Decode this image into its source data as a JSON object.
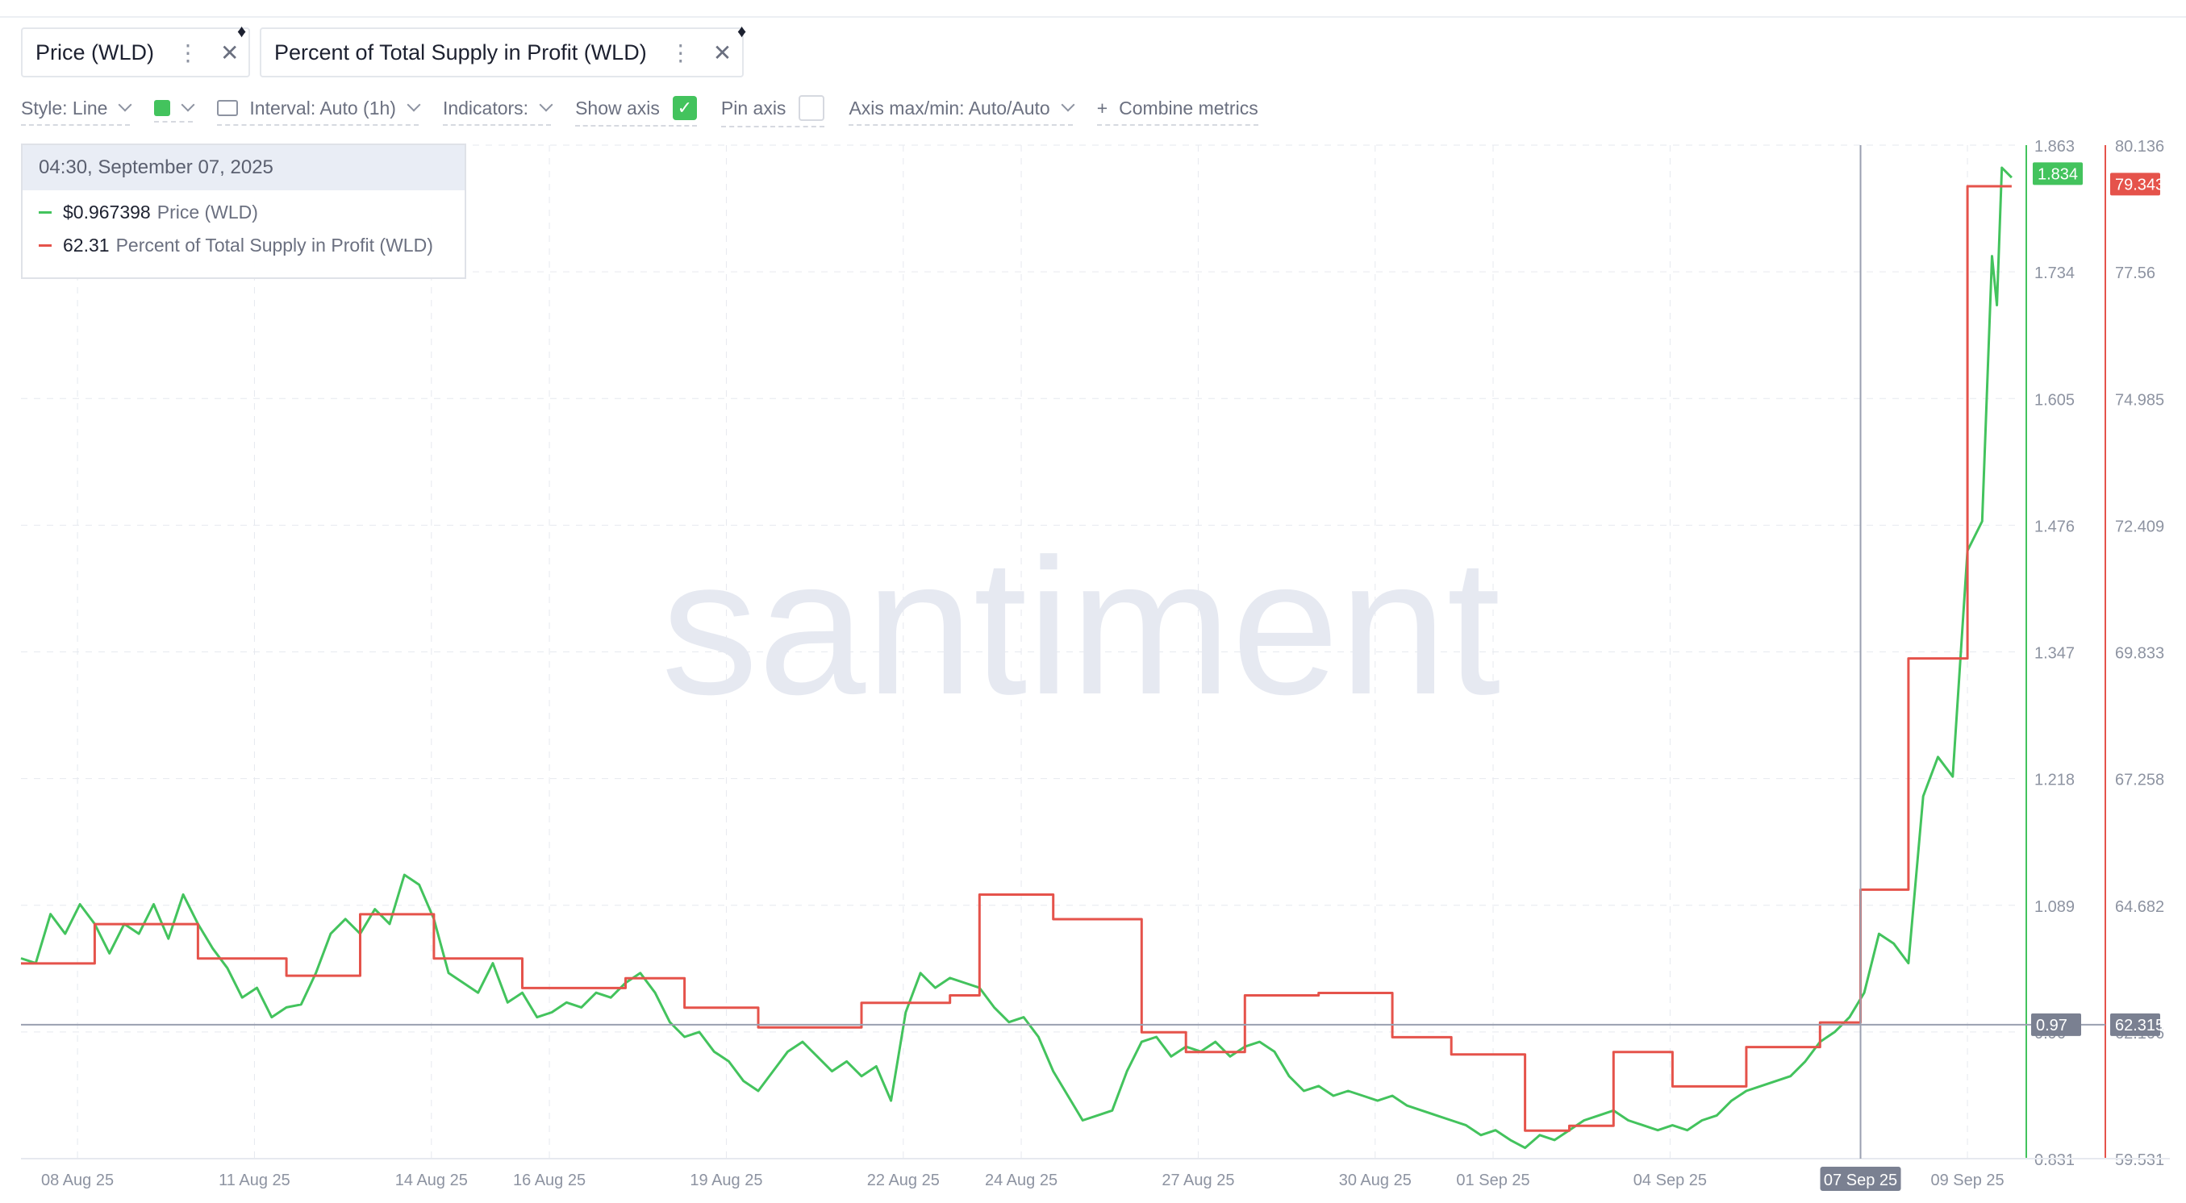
{
  "metric_tabs": [
    {
      "label": "Price (WLD)",
      "color": "#43c35d"
    },
    {
      "label": "Percent of Total Supply in Profit (WLD)",
      "color": "#e5534b"
    }
  ],
  "toolbar": {
    "style_label": "Style: Line",
    "interval_label": "Interval: Auto (1h)",
    "indicators_label": "Indicators:",
    "show_axis_label": "Show axis",
    "show_axis_checked": true,
    "pin_axis_label": "Pin axis",
    "pin_axis_checked": false,
    "axis_minmax_label": "Axis max/min: Auto/Auto",
    "combine_label": "Combine metrics"
  },
  "tooltip": {
    "date": "04:30, September 07, 2025",
    "rows": [
      {
        "value": "$0.967398",
        "label": "Price (WLD)",
        "color": "#43c35d"
      },
      {
        "value": "62.31",
        "label": "Percent of Total Supply in Profit (WLD)",
        "color": "#e5534b"
      }
    ]
  },
  "watermark": "santiment",
  "chart_data": {
    "type": "line",
    "x_ticks": [
      "08 Aug 25",
      "11 Aug 25",
      "14 Aug 25",
      "16 Aug 25",
      "19 Aug 25",
      "22 Aug 25",
      "24 Aug 25",
      "27 Aug 25",
      "30 Aug 25",
      "01 Sep 25",
      "04 Sep 25",
      "07 Sep 25",
      "09 Sep 25"
    ],
    "highlighted_x_tick": "07 Sep 25",
    "x_range": [
      "2025-08-07",
      "2025-09-09"
    ],
    "grid": true,
    "y_left": {
      "ticks": [
        "1.863",
        "1.734",
        "1.605",
        "1.476",
        "1.347",
        "1.218",
        "1.089",
        "0.96",
        "0.831"
      ],
      "range": [
        0.831,
        1.863
      ],
      "series": "Price (WLD)",
      "current_label": "1.834",
      "crosshair_label": "0.97"
    },
    "y_right": {
      "ticks": [
        "80.136",
        "77.56",
        "74.985",
        "72.409",
        "69.833",
        "67.258",
        "64.682",
        "62.106",
        "59.531"
      ],
      "range": [
        59.531,
        80.136
      ],
      "series": "Percent of Total Supply in Profit (WLD)",
      "current_label": "79.343",
      "crosshair_label": "62.315"
    },
    "series": [
      {
        "name": "Price (WLD)",
        "axis": "left",
        "color": "#43c35d",
        "points": [
          [
            "2025-08-07T00:00",
            1.035
          ],
          [
            "2025-08-07T06:00",
            1.03
          ],
          [
            "2025-08-07T12:00",
            1.08
          ],
          [
            "2025-08-07T18:00",
            1.06
          ],
          [
            "2025-08-08T00:00",
            1.09
          ],
          [
            "2025-08-08T06:00",
            1.07
          ],
          [
            "2025-08-08T12:00",
            1.04
          ],
          [
            "2025-08-08T18:00",
            1.07
          ],
          [
            "2025-08-09T00:00",
            1.06
          ],
          [
            "2025-08-09T06:00",
            1.09
          ],
          [
            "2025-08-09T12:00",
            1.055
          ],
          [
            "2025-08-09T18:00",
            1.1
          ],
          [
            "2025-08-10T00:00",
            1.07
          ],
          [
            "2025-08-10T06:00",
            1.045
          ],
          [
            "2025-08-10T12:00",
            1.025
          ],
          [
            "2025-08-10T18:00",
            0.995
          ],
          [
            "2025-08-11T00:00",
            1.005
          ],
          [
            "2025-08-11T06:00",
            0.975
          ],
          [
            "2025-08-11T12:00",
            0.985
          ],
          [
            "2025-08-11T18:00",
            0.988
          ],
          [
            "2025-08-12T00:00",
            1.02
          ],
          [
            "2025-08-12T06:00",
            1.06
          ],
          [
            "2025-08-12T12:00",
            1.075
          ],
          [
            "2025-08-12T18:00",
            1.06
          ],
          [
            "2025-08-13T00:00",
            1.085
          ],
          [
            "2025-08-13T06:00",
            1.07
          ],
          [
            "2025-08-13T12:00",
            1.12
          ],
          [
            "2025-08-13T18:00",
            1.11
          ],
          [
            "2025-08-14T00:00",
            1.075
          ],
          [
            "2025-08-14T06:00",
            1.02
          ],
          [
            "2025-08-14T12:00",
            1.01
          ],
          [
            "2025-08-14T18:00",
            1.0
          ],
          [
            "2025-08-15T00:00",
            1.03
          ],
          [
            "2025-08-15T06:00",
            0.99
          ],
          [
            "2025-08-15T12:00",
            1.0
          ],
          [
            "2025-08-15T18:00",
            0.975
          ],
          [
            "2025-08-16T00:00",
            0.98
          ],
          [
            "2025-08-16T06:00",
            0.99
          ],
          [
            "2025-08-16T12:00",
            0.985
          ],
          [
            "2025-08-16T18:00",
            1.0
          ],
          [
            "2025-08-17T00:00",
            0.995
          ],
          [
            "2025-08-17T06:00",
            1.01
          ],
          [
            "2025-08-17T12:00",
            1.02
          ],
          [
            "2025-08-17T18:00",
            1.0
          ],
          [
            "2025-08-18T00:00",
            0.97
          ],
          [
            "2025-08-18T06:00",
            0.955
          ],
          [
            "2025-08-18T12:00",
            0.96
          ],
          [
            "2025-08-18T18:00",
            0.94
          ],
          [
            "2025-08-19T00:00",
            0.93
          ],
          [
            "2025-08-19T06:00",
            0.91
          ],
          [
            "2025-08-19T12:00",
            0.9
          ],
          [
            "2025-08-19T18:00",
            0.92
          ],
          [
            "2025-08-20T00:00",
            0.94
          ],
          [
            "2025-08-20T06:00",
            0.95
          ],
          [
            "2025-08-20T12:00",
            0.935
          ],
          [
            "2025-08-20T18:00",
            0.92
          ],
          [
            "2025-08-21T00:00",
            0.93
          ],
          [
            "2025-08-21T06:00",
            0.915
          ],
          [
            "2025-08-21T12:00",
            0.925
          ],
          [
            "2025-08-21T18:00",
            0.89
          ],
          [
            "2025-08-22T00:00",
            0.98
          ],
          [
            "2025-08-22T06:00",
            1.02
          ],
          [
            "2025-08-22T12:00",
            1.005
          ],
          [
            "2025-08-22T18:00",
            1.015
          ],
          [
            "2025-08-23T00:00",
            1.01
          ],
          [
            "2025-08-23T06:00",
            1.005
          ],
          [
            "2025-08-23T12:00",
            0.985
          ],
          [
            "2025-08-23T18:00",
            0.97
          ],
          [
            "2025-08-24T00:00",
            0.975
          ],
          [
            "2025-08-24T06:00",
            0.955
          ],
          [
            "2025-08-24T12:00",
            0.92
          ],
          [
            "2025-08-24T18:00",
            0.895
          ],
          [
            "2025-08-25T00:00",
            0.87
          ],
          [
            "2025-08-25T06:00",
            0.875
          ],
          [
            "2025-08-25T12:00",
            0.88
          ],
          [
            "2025-08-25T18:00",
            0.92
          ],
          [
            "2025-08-26T00:00",
            0.95
          ],
          [
            "2025-08-26T06:00",
            0.955
          ],
          [
            "2025-08-26T12:00",
            0.935
          ],
          [
            "2025-08-26T18:00",
            0.945
          ],
          [
            "2025-08-27T00:00",
            0.94
          ],
          [
            "2025-08-27T06:00",
            0.95
          ],
          [
            "2025-08-27T12:00",
            0.935
          ],
          [
            "2025-08-27T18:00",
            0.945
          ],
          [
            "2025-08-28T00:00",
            0.95
          ],
          [
            "2025-08-28T06:00",
            0.94
          ],
          [
            "2025-08-28T12:00",
            0.915
          ],
          [
            "2025-08-28T18:00",
            0.9
          ],
          [
            "2025-08-29T00:00",
            0.905
          ],
          [
            "2025-08-29T06:00",
            0.895
          ],
          [
            "2025-08-29T12:00",
            0.9
          ],
          [
            "2025-08-29T18:00",
            0.895
          ],
          [
            "2025-08-30T00:00",
            0.89
          ],
          [
            "2025-08-30T06:00",
            0.895
          ],
          [
            "2025-08-30T12:00",
            0.885
          ],
          [
            "2025-08-30T18:00",
            0.88
          ],
          [
            "2025-08-31T00:00",
            0.875
          ],
          [
            "2025-08-31T06:00",
            0.87
          ],
          [
            "2025-08-31T12:00",
            0.865
          ],
          [
            "2025-08-31T18:00",
            0.855
          ],
          [
            "2025-09-01T00:00",
            0.86
          ],
          [
            "2025-09-01T06:00",
            0.85
          ],
          [
            "2025-09-01T12:00",
            0.842
          ],
          [
            "2025-09-01T18:00",
            0.855
          ],
          [
            "2025-09-02T00:00",
            0.85
          ],
          [
            "2025-09-02T06:00",
            0.86
          ],
          [
            "2025-09-02T12:00",
            0.87
          ],
          [
            "2025-09-02T18:00",
            0.875
          ],
          [
            "2025-09-03T00:00",
            0.88
          ],
          [
            "2025-09-03T06:00",
            0.87
          ],
          [
            "2025-09-03T12:00",
            0.865
          ],
          [
            "2025-09-03T18:00",
            0.86
          ],
          [
            "2025-09-04T00:00",
            0.865
          ],
          [
            "2025-09-04T06:00",
            0.86
          ],
          [
            "2025-09-04T12:00",
            0.87
          ],
          [
            "2025-09-04T18:00",
            0.875
          ],
          [
            "2025-09-05T00:00",
            0.89
          ],
          [
            "2025-09-05T06:00",
            0.9
          ],
          [
            "2025-09-05T12:00",
            0.905
          ],
          [
            "2025-09-05T18:00",
            0.91
          ],
          [
            "2025-09-06T00:00",
            0.915
          ],
          [
            "2025-09-06T06:00",
            0.93
          ],
          [
            "2025-09-06T12:00",
            0.95
          ],
          [
            "2025-09-06T18:00",
            0.96
          ],
          [
            "2025-09-07T00:00",
            0.975
          ],
          [
            "2025-09-07T06:00",
            1.0
          ],
          [
            "2025-09-07T12:00",
            1.06
          ],
          [
            "2025-09-07T18:00",
            1.05
          ],
          [
            "2025-09-08T00:00",
            1.03
          ],
          [
            "2025-09-08T06:00",
            1.2
          ],
          [
            "2025-09-08T12:00",
            1.24
          ],
          [
            "2025-09-08T18:00",
            1.22
          ],
          [
            "2025-09-09T00:00",
            1.45
          ],
          [
            "2025-09-09T06:00",
            1.48
          ],
          [
            "2025-09-09T10:00",
            1.75
          ],
          [
            "2025-09-09T12:00",
            1.7
          ],
          [
            "2025-09-09T14:00",
            1.84
          ],
          [
            "2025-09-09T18:00",
            1.83
          ]
        ]
      },
      {
        "name": "Percent of Total Supply in Profit (WLD)",
        "axis": "right",
        "color": "#e5534b",
        "points": [
          [
            "2025-08-07T00:00",
            63.5
          ],
          [
            "2025-08-08T06:00",
            63.5
          ],
          [
            "2025-08-08T06:00",
            64.3
          ],
          [
            "2025-08-10T00:00",
            64.3
          ],
          [
            "2025-08-10T00:00",
            63.6
          ],
          [
            "2025-08-11T12:00",
            63.6
          ],
          [
            "2025-08-11T12:00",
            63.25
          ],
          [
            "2025-08-12T18:00",
            63.25
          ],
          [
            "2025-08-12T18:00",
            64.5
          ],
          [
            "2025-08-14T00:00",
            64.5
          ],
          [
            "2025-08-14T00:00",
            63.6
          ],
          [
            "2025-08-15T12:00",
            63.6
          ],
          [
            "2025-08-15T12:00",
            63.0
          ],
          [
            "2025-08-17T06:00",
            63.0
          ],
          [
            "2025-08-17T06:00",
            63.2
          ],
          [
            "2025-08-18T06:00",
            63.2
          ],
          [
            "2025-08-18T06:00",
            62.6
          ],
          [
            "2025-08-19T12:00",
            62.6
          ],
          [
            "2025-08-19T12:00",
            62.2
          ],
          [
            "2025-08-21T06:00",
            62.2
          ],
          [
            "2025-08-21T06:00",
            62.7
          ],
          [
            "2025-08-22T18:00",
            62.7
          ],
          [
            "2025-08-22T18:00",
            62.85
          ],
          [
            "2025-08-23T06:00",
            62.85
          ],
          [
            "2025-08-23T06:00",
            64.9
          ],
          [
            "2025-08-24T12:00",
            64.9
          ],
          [
            "2025-08-24T12:00",
            64.4
          ],
          [
            "2025-08-26T00:00",
            64.4
          ],
          [
            "2025-08-26T00:00",
            62.1
          ],
          [
            "2025-08-26T18:00",
            62.1
          ],
          [
            "2025-08-26T18:00",
            61.7
          ],
          [
            "2025-08-27T18:00",
            61.7
          ],
          [
            "2025-08-27T18:00",
            62.85
          ],
          [
            "2025-08-29T00:00",
            62.85
          ],
          [
            "2025-08-29T00:00",
            62.9
          ],
          [
            "2025-08-30T06:00",
            62.9
          ],
          [
            "2025-08-30T06:00",
            62.0
          ],
          [
            "2025-08-31T06:00",
            62.0
          ],
          [
            "2025-08-31T06:00",
            61.65
          ],
          [
            "2025-09-01T12:00",
            61.65
          ],
          [
            "2025-09-01T12:00",
            60.1
          ],
          [
            "2025-09-02T06:00",
            60.1
          ],
          [
            "2025-09-02T06:00",
            60.2
          ],
          [
            "2025-09-03T00:00",
            60.2
          ],
          [
            "2025-09-03T00:00",
            61.7
          ],
          [
            "2025-09-04T00:00",
            61.7
          ],
          [
            "2025-09-04T00:00",
            61.0
          ],
          [
            "2025-09-05T06:00",
            61.0
          ],
          [
            "2025-09-05T06:00",
            61.8
          ],
          [
            "2025-09-06T12:00",
            61.8
          ],
          [
            "2025-09-06T12:00",
            62.3
          ],
          [
            "2025-09-07T04:30",
            62.3
          ],
          [
            "2025-09-07T04:30",
            65.0
          ],
          [
            "2025-09-08T00:00",
            65.0
          ],
          [
            "2025-09-08T00:00",
            69.7
          ],
          [
            "2025-09-09T00:00",
            69.7
          ],
          [
            "2025-09-09T00:00",
            79.3
          ],
          [
            "2025-09-09T18:00",
            79.3
          ]
        ]
      }
    ],
    "crosshair_x": "2025-09-07T04:30",
    "legend": "tabs-top-left"
  }
}
